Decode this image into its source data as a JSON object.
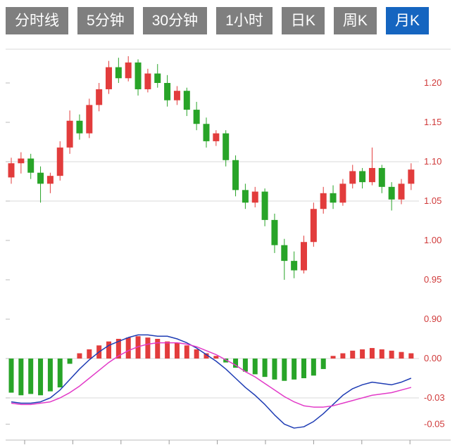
{
  "tabs": [
    {
      "label": "分时线",
      "active": false
    },
    {
      "label": "5分钟",
      "active": false
    },
    {
      "label": "30分钟",
      "active": false
    },
    {
      "label": "1小时",
      "active": false
    },
    {
      "label": "日K",
      "active": false
    },
    {
      "label": "周K",
      "active": false
    },
    {
      "label": "月K",
      "active": true
    }
  ],
  "colors": {
    "up": "#e23c3c",
    "down": "#28a428",
    "dif_line": "#1e3cb4",
    "dea_line": "#e23ac8",
    "axis_label": "#d03a3a",
    "grid": "#d8d8d8",
    "axis": "#bbbbbb",
    "tab_bg": "#7f7f7f",
    "tab_active_bg": "#1565c0",
    "tab_text": "#ffffff"
  },
  "chart_data": {
    "type": "candlestick",
    "panels": [
      "price",
      "macd"
    ],
    "legend_position": "none",
    "grid": true,
    "price_axis": [
      {
        "label": "1.20",
        "value": 1.2
      },
      {
        "label": "1.15",
        "value": 1.15
      },
      {
        "label": "1.10",
        "value": 1.1
      },
      {
        "label": "1.05",
        "value": 1.05
      },
      {
        "label": "1.00",
        "value": 1.0
      },
      {
        "label": "0.95",
        "value": 0.95
      },
      {
        "label": "0.90",
        "value": 0.9
      }
    ],
    "price_gridline_values": [
      1.1,
      1.05
    ],
    "macd_axis": [
      {
        "label": "0.00",
        "value": 0
      },
      {
        "label": "-0.03",
        "value": -0.03
      },
      {
        "label": "-0.05",
        "value": -0.05
      }
    ],
    "macd_gridline_values": [
      0,
      -0.03
    ],
    "price_range": [
      0.9,
      1.25
    ],
    "macd_range": [
      -0.062,
      0.027
    ],
    "candles_ohlc": [
      [
        1.08,
        1.105,
        1.072,
        1.098
      ],
      [
        1.098,
        1.112,
        1.085,
        1.104
      ],
      [
        1.104,
        1.11,
        1.078,
        1.086
      ],
      [
        1.086,
        1.094,
        1.048,
        1.072
      ],
      [
        1.072,
        1.086,
        1.06,
        1.082
      ],
      [
        1.082,
        1.126,
        1.076,
        1.118
      ],
      [
        1.118,
        1.165,
        1.11,
        1.152
      ],
      [
        1.152,
        1.16,
        1.128,
        1.136
      ],
      [
        1.136,
        1.18,
        1.13,
        1.172
      ],
      [
        1.172,
        1.2,
        1.164,
        1.192
      ],
      [
        1.192,
        1.228,
        1.186,
        1.22
      ],
      [
        1.22,
        1.232,
        1.2,
        1.206
      ],
      [
        1.206,
        1.234,
        1.202,
        1.226
      ],
      [
        1.226,
        1.23,
        1.184,
        1.192
      ],
      [
        1.192,
        1.218,
        1.188,
        1.212
      ],
      [
        1.212,
        1.224,
        1.194,
        1.2
      ],
      [
        1.2,
        1.21,
        1.17,
        1.178
      ],
      [
        1.178,
        1.196,
        1.172,
        1.19
      ],
      [
        1.19,
        1.194,
        1.158,
        1.166
      ],
      [
        1.166,
        1.176,
        1.14,
        1.148
      ],
      [
        1.148,
        1.156,
        1.118,
        1.126
      ],
      [
        1.126,
        1.14,
        1.12,
        1.136
      ],
      [
        1.136,
        1.14,
        1.094,
        1.102
      ],
      [
        1.102,
        1.108,
        1.056,
        1.064
      ],
      [
        1.064,
        1.072,
        1.04,
        1.048
      ],
      [
        1.048,
        1.068,
        1.042,
        1.062
      ],
      [
        1.062,
        1.066,
        1.018,
        1.026
      ],
      [
        1.026,
        1.034,
        0.984,
        0.994
      ],
      [
        0.994,
        1.002,
        0.95,
        0.974
      ],
      [
        0.974,
        0.986,
        0.952,
        0.962
      ],
      [
        0.962,
        1.006,
        0.958,
        0.998
      ],
      [
        0.998,
        1.048,
        0.992,
        1.04
      ],
      [
        1.04,
        1.068,
        1.034,
        1.06
      ],
      [
        1.06,
        1.07,
        1.04,
        1.048
      ],
      [
        1.048,
        1.078,
        1.044,
        1.072
      ],
      [
        1.072,
        1.096,
        1.066,
        1.088
      ],
      [
        1.088,
        1.092,
        1.066,
        1.074
      ],
      [
        1.074,
        1.118,
        1.07,
        1.092
      ],
      [
        1.092,
        1.096,
        1.06,
        1.068
      ],
      [
        1.068,
        1.074,
        1.038,
        1.052
      ],
      [
        1.052,
        1.078,
        1.046,
        1.072
      ],
      [
        1.072,
        1.098,
        1.064,
        1.09
      ]
    ],
    "macd": {
      "histogram": [
        -0.026,
        -0.028,
        -0.027,
        -0.028,
        -0.025,
        -0.022,
        -0.004,
        0.004,
        0.007,
        0.01,
        0.013,
        0.015,
        0.016,
        0.017,
        0.016,
        0.015,
        0.013,
        0.012,
        0.01,
        0.007,
        0.004,
        0.002,
        -0.003,
        -0.007,
        -0.01,
        -0.012,
        -0.014,
        -0.016,
        -0.017,
        -0.016,
        -0.015,
        -0.013,
        -0.008,
        0.002,
        0.004,
        0.006,
        0.007,
        0.008,
        0.007,
        0.006,
        0.005,
        0.004
      ],
      "dif": [
        -0.033,
        -0.034,
        -0.034,
        -0.033,
        -0.03,
        -0.024,
        -0.016,
        -0.008,
        -0.001,
        0.005,
        0.01,
        0.013,
        0.016,
        0.018,
        0.018,
        0.017,
        0.017,
        0.015,
        0.012,
        0.008,
        0.003,
        -0.002,
        -0.008,
        -0.015,
        -0.022,
        -0.028,
        -0.035,
        -0.043,
        -0.05,
        -0.053,
        -0.052,
        -0.048,
        -0.042,
        -0.035,
        -0.028,
        -0.023,
        -0.02,
        -0.018,
        -0.019,
        -0.02,
        -0.018,
        -0.015
      ],
      "dea": [
        -0.034,
        -0.035,
        -0.035,
        -0.034,
        -0.033,
        -0.03,
        -0.026,
        -0.021,
        -0.015,
        -0.009,
        -0.003,
        0.002,
        0.006,
        0.009,
        0.011,
        0.012,
        0.012,
        0.012,
        0.011,
        0.009,
        0.006,
        0.003,
        -0.001,
        -0.005,
        -0.01,
        -0.014,
        -0.019,
        -0.024,
        -0.029,
        -0.033,
        -0.036,
        -0.037,
        -0.037,
        -0.036,
        -0.034,
        -0.032,
        -0.03,
        -0.028,
        -0.027,
        -0.026,
        -0.024,
        -0.022
      ]
    }
  }
}
